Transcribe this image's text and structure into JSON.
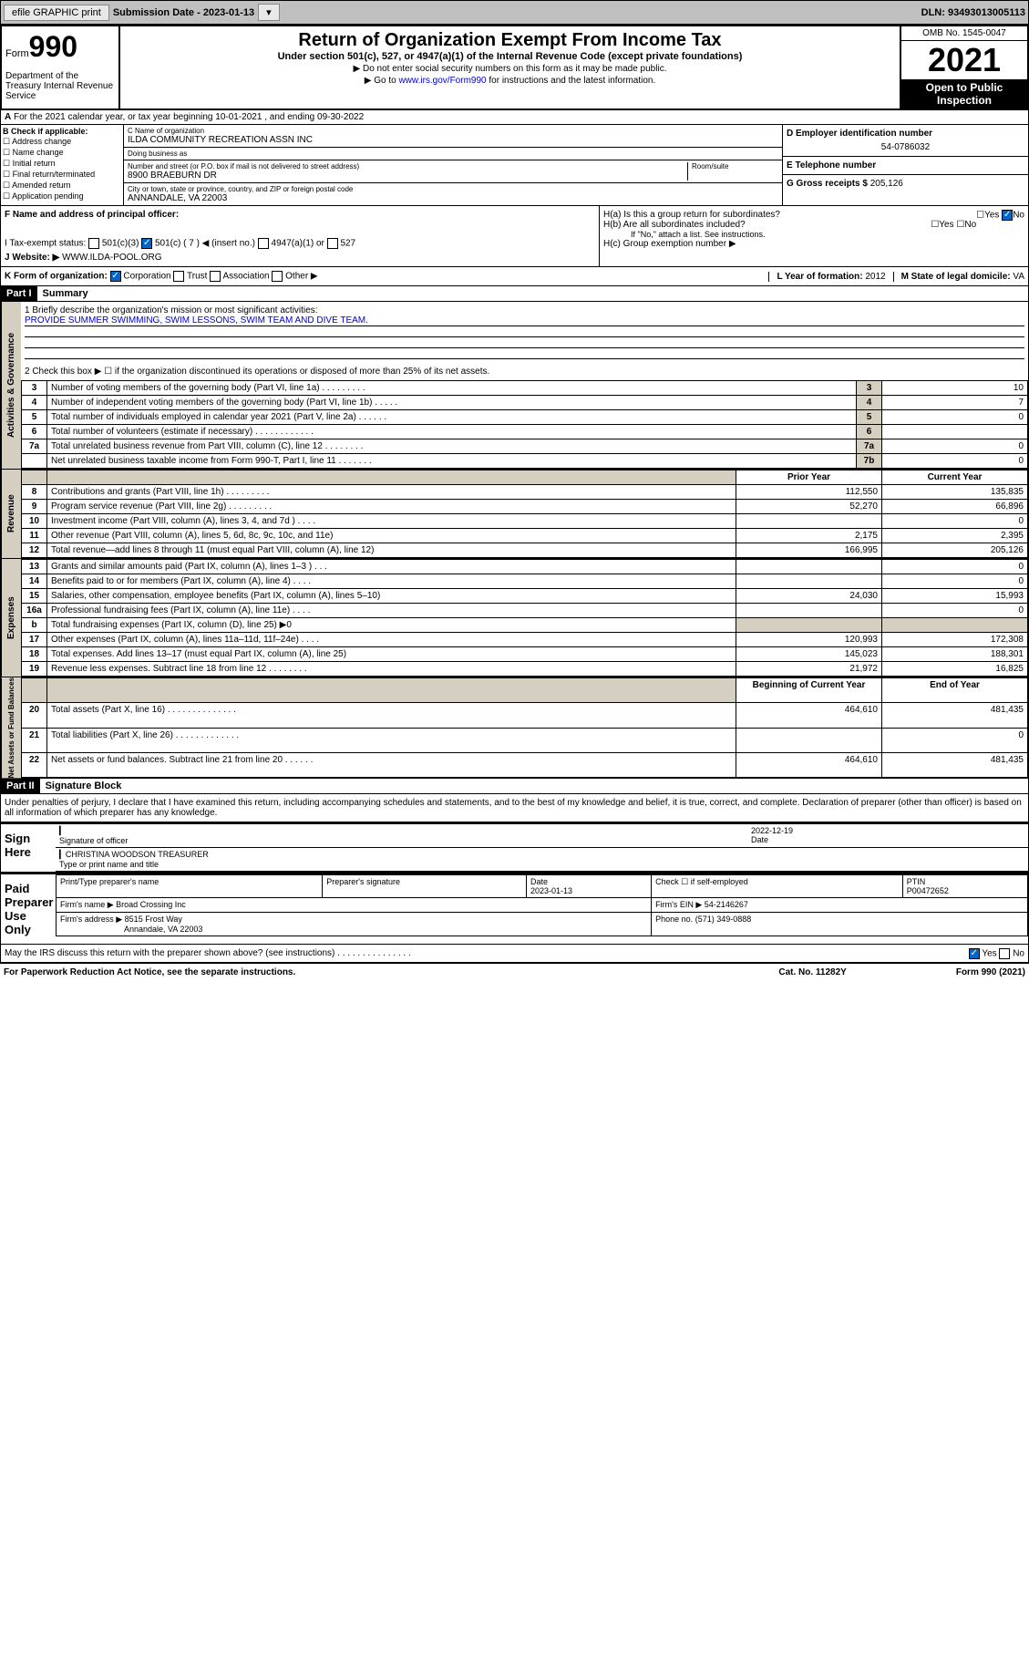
{
  "topbar": {
    "efile": "efile GRAPHIC print",
    "submission": "Submission Date - 2023-01-13",
    "dln": "DLN: 93493013005113"
  },
  "header": {
    "form_prefix": "Form",
    "form_number": "990",
    "dept": "Department of the Treasury Internal Revenue Service",
    "title": "Return of Organization Exempt From Income Tax",
    "subtitle": "Under section 501(c), 527, or 4947(a)(1) of the Internal Revenue Code (except private foundations)",
    "note1": "▶ Do not enter social security numbers on this form as it may be made public.",
    "note2_prefix": "▶ Go to ",
    "note2_link": "www.irs.gov/Form990",
    "note2_suffix": " for instructions and the latest information.",
    "omb": "OMB No. 1545-0047",
    "year": "2021",
    "open": "Open to Public Inspection"
  },
  "tax_year": "For the 2021 calendar year, or tax year beginning 10-01-2021   , and ending 09-30-2022",
  "boxB": {
    "label": "B Check if applicable:",
    "items": [
      "Address change",
      "Name change",
      "Initial return",
      "Final return/terminated",
      "Amended return",
      "Application pending"
    ]
  },
  "boxC": {
    "name_label": "C Name of organization",
    "name": "ILDA COMMUNITY RECREATION ASSN INC",
    "dba_label": "Doing business as",
    "dba": "",
    "street_label": "Number and street (or P.O. box if mail is not delivered to street address)",
    "room_label": "Room/suite",
    "street": "8900 BRAEBURN DR",
    "city_label": "City or town, state or province, country, and ZIP or foreign postal code",
    "city": "ANNANDALE, VA  22003"
  },
  "boxD": {
    "label": "D Employer identification number",
    "ein": "54-0786032"
  },
  "boxE": {
    "label": "E Telephone number",
    "phone": ""
  },
  "boxG": {
    "label": "G Gross receipts $",
    "amount": "205,126"
  },
  "boxF": {
    "label": "F  Name and address of principal officer:",
    "name": ""
  },
  "boxH": {
    "a": "H(a)  Is this a group return for subordinates?",
    "a_ans": "No",
    "b": "H(b)  Are all subordinates included?",
    "b_note": "If \"No,\" attach a list. See instructions.",
    "c": "H(c)  Group exemption number ▶"
  },
  "boxI": {
    "label": "I   Tax-exempt status:",
    "checked": "501(c) ( 7 ) ◀ (insert no.)",
    "opts": [
      "501(c)(3)",
      "501(c) ( 7 ) ◀ (insert no.)",
      "4947(a)(1) or",
      "527"
    ]
  },
  "boxJ": {
    "label": "J   Website: ▶",
    "val": "WWW.ILDA-POOL.ORG"
  },
  "boxK": {
    "label": "K Form of organization:",
    "checked": "Corporation",
    "opts": [
      "Corporation",
      "Trust",
      "Association",
      "Other ▶"
    ]
  },
  "boxL": {
    "label": "L Year of formation:",
    "val": "2012"
  },
  "boxM": {
    "label": "M State of legal domicile:",
    "val": "VA"
  },
  "part1": {
    "hdr": "Part I",
    "title": "Summary",
    "line1": "1  Briefly describe the organization's mission or most significant activities:",
    "mission": "PROVIDE SUMMER SWIMMING, SWIM LESSONS, SWIM TEAM AND DIVE TEAM.",
    "line2": "2   Check this box ▶ ☐  if the organization discontinued its operations or disposed of more than 25% of its net assets.",
    "rows_a": [
      {
        "n": "3",
        "t": "Number of voting members of the governing body (Part VI, line 1a)  .  .  .  .  .  .  .  .  .",
        "box": "3",
        "v": "10"
      },
      {
        "n": "4",
        "t": "Number of independent voting members of the governing body (Part VI, line 1b)  .  .  .  .  .",
        "box": "4",
        "v": "7"
      },
      {
        "n": "5",
        "t": "Total number of individuals employed in calendar year 2021 (Part V, line 2a)  .  .  .  .  .  .",
        "box": "5",
        "v": "0"
      },
      {
        "n": "6",
        "t": "Total number of volunteers (estimate if necessary)  .  .  .  .  .  .  .  .  .  .  .  .",
        "box": "6",
        "v": ""
      },
      {
        "n": "7a",
        "t": "Total unrelated business revenue from Part VIII, column (C), line 12  .  .  .  .  .  .  .  .",
        "box": "7a",
        "v": "0"
      },
      {
        "n": "",
        "t": "Net unrelated business taxable income from Form 990-T, Part I, line 11  .  .  .  .  .  .  .",
        "box": "7b",
        "v": "0"
      }
    ],
    "col_prior": "Prior Year",
    "col_current": "Current Year",
    "rev_rows": [
      {
        "n": "8",
        "t": "Contributions and grants (Part VIII, line 1h)  .  .  .  .  .  .  .  .  .",
        "p": "112,550",
        "c": "135,835"
      },
      {
        "n": "9",
        "t": "Program service revenue (Part VIII, line 2g)  .  .  .  .  .  .  .  .  .",
        "p": "52,270",
        "c": "66,896"
      },
      {
        "n": "10",
        "t": "Investment income (Part VIII, column (A), lines 3, 4, and 7d )  .  .  .  .",
        "p": "",
        "c": "0"
      },
      {
        "n": "11",
        "t": "Other revenue (Part VIII, column (A), lines 5, 6d, 8c, 9c, 10c, and 11e)",
        "p": "2,175",
        "c": "2,395"
      },
      {
        "n": "12",
        "t": "Total revenue—add lines 8 through 11 (must equal Part VIII, column (A), line 12)",
        "p": "166,995",
        "c": "205,126"
      }
    ],
    "exp_rows": [
      {
        "n": "13",
        "t": "Grants and similar amounts paid (Part IX, column (A), lines 1–3 )  .  .  .",
        "p": "",
        "c": "0"
      },
      {
        "n": "14",
        "t": "Benefits paid to or for members (Part IX, column (A), line 4)  .  .  .  .",
        "p": "",
        "c": "0"
      },
      {
        "n": "15",
        "t": "Salaries, other compensation, employee benefits (Part IX, column (A), lines 5–10)",
        "p": "24,030",
        "c": "15,993"
      },
      {
        "n": "16a",
        "t": "Professional fundraising fees (Part IX, column (A), line 11e)  .  .  .  .",
        "p": "",
        "c": "0"
      },
      {
        "n": "b",
        "t": "Total fundraising expenses (Part IX, column (D), line 25) ▶0",
        "p": null,
        "c": null
      },
      {
        "n": "17",
        "t": "Other expenses (Part IX, column (A), lines 11a–11d, 11f–24e)  .  .  .  .",
        "p": "120,993",
        "c": "172,308"
      },
      {
        "n": "18",
        "t": "Total expenses. Add lines 13–17 (must equal Part IX, column (A), line 25)",
        "p": "145,023",
        "c": "188,301"
      },
      {
        "n": "19",
        "t": "Revenue less expenses. Subtract line 18 from line 12 .  .  .  .  .  .  .  .",
        "p": "21,972",
        "c": "16,825"
      }
    ],
    "col_beg": "Beginning of Current Year",
    "col_end": "End of Year",
    "net_rows": [
      {
        "n": "20",
        "t": "Total assets (Part X, line 16)  .  .  .  .  .  .  .  .  .  .  .  .  .  .",
        "p": "464,610",
        "c": "481,435"
      },
      {
        "n": "21",
        "t": "Total liabilities (Part X, line 26)  .  .  .  .  .  .  .  .  .  .  .  .  .",
        "p": "",
        "c": "0"
      },
      {
        "n": "22",
        "t": "Net assets or fund balances. Subtract line 21 from line 20  .  .  .  .  .  .",
        "p": "464,610",
        "c": "481,435"
      }
    ]
  },
  "part2": {
    "hdr": "Part II",
    "title": "Signature Block",
    "decl": "Under penalties of perjury, I declare that I have examined this return, including accompanying schedules and statements, and to the best of my knowledge and belief, it is true, correct, and complete. Declaration of preparer (other than officer) is based on all information of which preparer has any knowledge.",
    "sign_here": "Sign Here",
    "sig_officer": "Signature of officer",
    "sig_date": "2022-12-19",
    "date_label": "Date",
    "officer_name": "CHRISTINA WOODSON  TREASURER",
    "type_name": "Type or print name and title",
    "paid": "Paid Preparer Use Only",
    "prep_name_label": "Print/Type preparer's name",
    "prep_sig_label": "Preparer's signature",
    "prep_date_label": "Date",
    "prep_date": "2023-01-13",
    "self_emp": "Check ☐ if self-employed",
    "ptin_label": "PTIN",
    "ptin": "P00472652",
    "firm_label": "Firm's name    ▶",
    "firm": "Broad Crossing Inc",
    "firm_ein_label": "Firm's EIN ▶",
    "firm_ein": "54-2146267",
    "firm_addr_label": "Firm's address ▶",
    "firm_addr": "8515 Frost Way",
    "firm_city": "Annandale, VA  22003",
    "firm_phone_label": "Phone no.",
    "firm_phone": "(571) 349-0888",
    "may_irs": "May the IRS discuss this return with the preparer shown above? (see instructions)  .  .  .  .  .  .  .  .  .  .  .  .  .  .  .",
    "may_yes": "Yes",
    "may_no": "No"
  },
  "footer": {
    "left": "For Paperwork Reduction Act Notice, see the separate instructions.",
    "mid": "Cat. No. 11282Y",
    "right": "Form 990 (2021)"
  },
  "sidebars": {
    "gov": "Activities & Governance",
    "rev": "Revenue",
    "exp": "Expenses",
    "net": "Net Assets or Fund Balances"
  }
}
